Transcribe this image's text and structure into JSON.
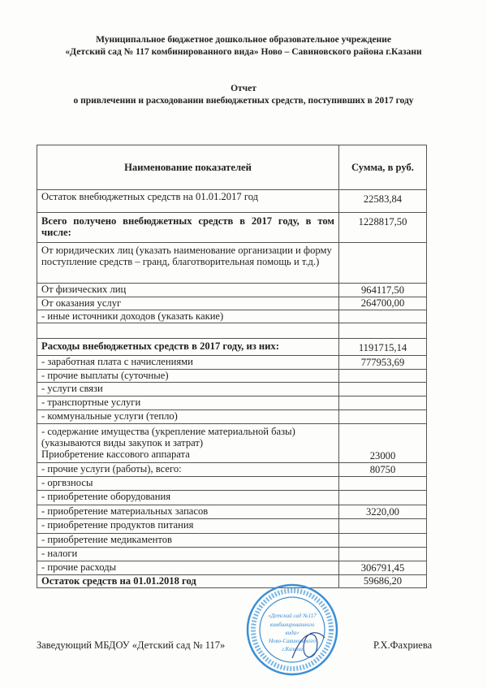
{
  "header": {
    "org_line1": "Муниципальное бюджетное дошкольное образовательное учреждение",
    "org_line2": "«Детский сад № 117 комбинированного вида» Ново – Савиновского района г.Казани",
    "title": "Отчет",
    "subtitle": "о привлечении и расходовании внебюджетных средств, поступивших в 2017 году"
  },
  "table": {
    "col_name": "Наименование показателей",
    "col_sum": "Сумма, в руб.",
    "rows": [
      {
        "label": "Остаток внебюджетных средств на 01.01.2017 год",
        "value": "22583,84"
      },
      {
        "label": "Всего получено внебюджетных средств в 2017 году, в том числе:",
        "value": "1228817,50"
      },
      {
        "label": "От юридических лиц (указать наименование организации и форму поступление средств – гранд, благотворительная помощь  и т.д.)",
        "value": ""
      },
      {
        "label": "От физических лиц",
        "value": "964117,50"
      },
      {
        "label": "От оказания услуг",
        "value": "264700,00"
      },
      {
        "label": "- иные источники доходов  (указать какие)",
        "value": ""
      },
      {
        "label": "",
        "value": ""
      },
      {
        "label": "Расходы внебюджетных средств в 2017 году, из них:",
        "value": "1191715,14"
      },
      {
        "label": "- заработная плата с начислениями",
        "value": "777953,69"
      },
      {
        "label": "- прочие выплаты (суточные)",
        "value": ""
      },
      {
        "label": "- услуги связи",
        "value": ""
      },
      {
        "label": "- транспортные услуги",
        "value": ""
      },
      {
        "label": "- коммунальные услуги (тепло)",
        "value": ""
      },
      {
        "label": "- содержание имущества (укрепление материальной базы)",
        "label2": "(указываются виды закупок и затрат)",
        "label3": "Приобретение кассового аппарата",
        "value": "23000"
      },
      {
        "label": "- прочие услуги (работы), всего:",
        "value": "80750"
      },
      {
        "label": "- оргвзносы",
        "value": ""
      },
      {
        "label": "- приобретение оборудования",
        "value": ""
      },
      {
        "label": "- приобретение материальных запасов",
        "value": "3220,00"
      },
      {
        "label": "- приобретение продуктов питания",
        "value": ""
      },
      {
        "label": "- приобретение медикаментов",
        "value": ""
      },
      {
        "label": "- налоги",
        "value": ""
      },
      {
        "label": "- прочие расходы",
        "value": "306791,45"
      },
      {
        "label": "Остаток средств на 01.01.2018 год",
        "value": "59686,20"
      }
    ]
  },
  "footer": {
    "position": "Заведующий   МБДОУ «Детский сад № 117»",
    "signatory": "Р.Х.Фахриева"
  },
  "stamp": {
    "color": "#3a8fd6",
    "text": "«Детский сад №117 комбинированного вида» Ново-Савиновского района г.Казани"
  }
}
